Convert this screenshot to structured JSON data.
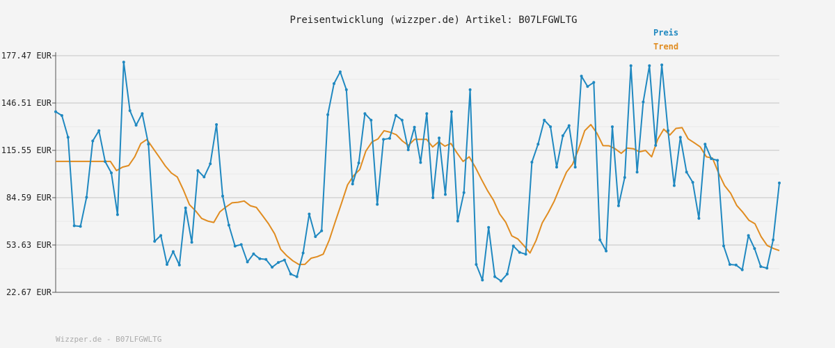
{
  "chart_data": {
    "type": "line",
    "title": "Preisentwicklung (wizzper.de) Artikel: B07LFGWLTG",
    "footer": "Wizzper.de - B07LFGWLTG",
    "y_ticks": [
      "177.47 EUR",
      "146.51 EUR",
      "115.55 EUR",
      "84.59 EUR",
      "53.63 EUR",
      "22.67 EUR"
    ],
    "ylim": [
      22.67,
      177.47
    ],
    "grid": true,
    "legend_position": "top-right",
    "series": [
      {
        "name": "Preis",
        "color": "#1f88c0",
        "values": [
          140.8,
          138.3,
          124.1,
          66.2,
          65.8,
          84.8,
          121.7,
          128.4,
          108.2,
          100.8,
          73.5,
          173.3,
          141.5,
          132.0,
          139.6,
          119.6,
          56.0,
          59.8,
          40.9,
          49.3,
          40.5,
          77.9,
          55.4,
          102.3,
          98.1,
          106.7,
          132.4,
          85.6,
          66.6,
          52.9,
          53.9,
          42.5,
          47.8,
          44.6,
          44.2,
          39.1,
          42.2,
          43.8,
          34.6,
          32.9,
          48.4,
          73.9,
          59.1,
          62.9,
          138.9,
          159.2,
          166.9,
          155.2,
          93.5,
          107.3,
          139.6,
          135.3,
          80.2,
          122.7,
          123.4,
          138.4,
          135.3,
          115.9,
          130.7,
          107.6,
          139.6,
          84.6,
          123.6,
          86.7,
          140.8,
          69.3,
          87.9,
          155.2,
          40.9,
          30.7,
          65.1,
          32.9,
          30.1,
          34.6,
          53.0,
          48.8,
          47.6,
          107.8,
          119.6,
          135.3,
          131.0,
          104.6,
          125.1,
          131.7,
          104.6,
          164.1,
          157.3,
          160.0,
          57.0,
          49.7,
          131.0,
          79.3,
          97.8,
          170.9,
          101.3,
          147.2,
          170.9,
          118.8,
          171.4,
          128.4,
          92.5,
          124.1,
          101.3,
          94.6,
          71.0,
          119.6,
          110.1,
          109.0,
          53.0,
          40.9,
          40.5,
          37.4,
          59.8,
          51.3,
          39.5,
          38.5,
          57.0,
          94.2
        ]
      },
      {
        "name": "Trend",
        "color": "#e08c20",
        "values": [
          108.3,
          108.3,
          108.3,
          108.3,
          108.3,
          108.3,
          108.3,
          108.3,
          108.3,
          108.3,
          102.3,
          104.6,
          105.6,
          111.3,
          120.0,
          122.7,
          117.0,
          111.3,
          105.5,
          100.8,
          98.1,
          89.7,
          80.0,
          76.0,
          71.0,
          69.3,
          68.4,
          75.3,
          78.5,
          81.2,
          81.6,
          82.4,
          79.3,
          78.2,
          73.0,
          67.5,
          61.0,
          50.8,
          46.6,
          43.3,
          40.9,
          41.0,
          45.0,
          46.0,
          47.6,
          57.0,
          69.1,
          81.0,
          93.0,
          99.0,
          103.0,
          115.0,
          121.0,
          123.0,
          128.4,
          127.4,
          125.8,
          121.7,
          118.8,
          122.7,
          122.7,
          122.7,
          117.8,
          121.2,
          118.3,
          120.0,
          113.8,
          108.3,
          111.3,
          104.6,
          96.7,
          89.3,
          82.9,
          74.0,
          68.6,
          59.6,
          57.6,
          53.2,
          48.4,
          56.6,
          68.0,
          74.8,
          82.4,
          92.1,
          101.3,
          106.5,
          116.6,
          128.4,
          132.4,
          126.8,
          118.6,
          118.5,
          116.6,
          113.6,
          117.0,
          116.6,
          114.6,
          115.5,
          111.3,
          122.7,
          129.4,
          125.6,
          129.9,
          130.4,
          123.1,
          120.5,
          117.8,
          111.3,
          110.5,
          100.8,
          92.5,
          87.4,
          79.5,
          75.0,
          69.8,
          67.5,
          59.1,
          53.3,
          51.4,
          50.0
        ]
      }
    ]
  }
}
